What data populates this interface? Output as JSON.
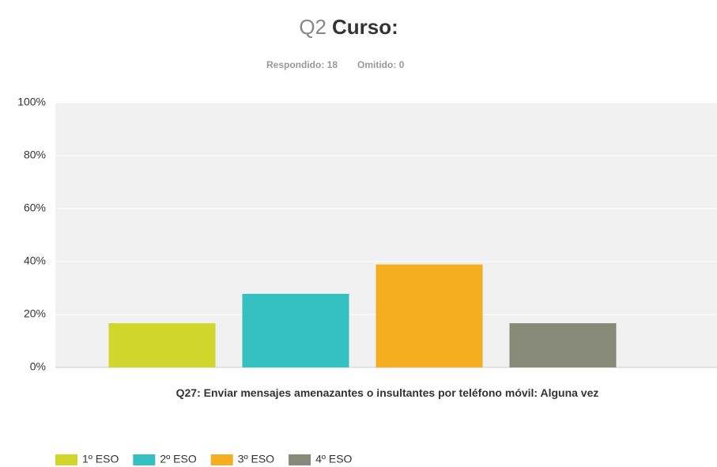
{
  "chart_data": {
    "type": "bar",
    "title_prefix": "Q2",
    "title": "Curso:",
    "subtitle": [
      "Respondido: 18",
      "Omitido: 0"
    ],
    "categories": [
      "Q27: Enviar mensajes amenazantes o insultantes por teléfono móvil: Alguna vez"
    ],
    "series": [
      {
        "name": "1º ESO",
        "color": "#d0d62b",
        "values": [
          16.7
        ]
      },
      {
        "name": "2º ESO",
        "color": "#34bfc1",
        "values": [
          27.8
        ]
      },
      {
        "name": "3º ESO",
        "color": "#f5ae1f",
        "values": [
          38.9
        ]
      },
      {
        "name": "4º ESO",
        "color": "#878a79",
        "values": [
          16.7
        ]
      }
    ],
    "ylim": [
      0,
      100
    ],
    "yticks": [
      {
        "value": 0,
        "label": "0%"
      },
      {
        "value": 20,
        "label": "20%"
      },
      {
        "value": 40,
        "label": "40%"
      },
      {
        "value": 60,
        "label": "60%"
      },
      {
        "value": 80,
        "label": "80%"
      },
      {
        "value": 100,
        "label": "100%"
      }
    ],
    "grid": true,
    "legend": "bottom-left"
  }
}
